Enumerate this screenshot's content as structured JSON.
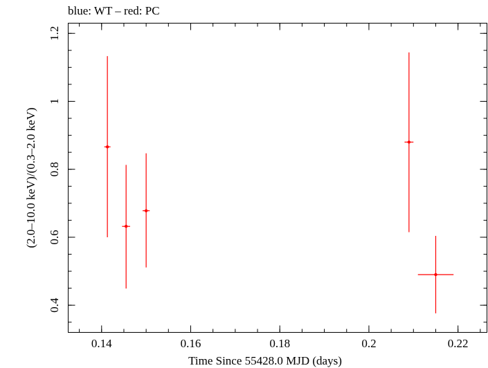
{
  "chart_data": {
    "type": "scatter",
    "title": "blue: WT – red: PC",
    "xlabel": "Time Since 55428.0 MJD (days)",
    "ylabel": "(2.0–10.0 keV)/(0.3–2.0 keV)",
    "xlim": [
      0.1325,
      0.2265
    ],
    "ylim": [
      0.32,
      1.23
    ],
    "x_ticks": [
      0.14,
      0.16,
      0.18,
      0.2,
      0.22
    ],
    "x_tick_labels": [
      "0.14",
      "0.16",
      "0.18",
      "0.2",
      "0.22"
    ],
    "y_ticks": [
      0.4,
      0.6,
      0.8,
      1.0,
      1.2
    ],
    "y_tick_labels": [
      "0.4",
      "0.6",
      "0.8",
      "1",
      "1.2"
    ],
    "grid": false,
    "series": [
      {
        "color": "#ff0000",
        "points": [
          {
            "x": 0.1413,
            "y": 0.866,
            "xerr": 0.0007,
            "ylo": 0.6,
            "yhi": 1.133
          },
          {
            "x": 0.1455,
            "y": 0.632,
            "xerr": 0.0009,
            "ylo": 0.449,
            "yhi": 0.813
          },
          {
            "x": 0.15,
            "y": 0.678,
            "xerr": 0.0008,
            "ylo": 0.511,
            "yhi": 0.847
          },
          {
            "x": 0.209,
            "y": 0.88,
            "xerr": 0.001,
            "ylo": 0.615,
            "yhi": 1.144
          },
          {
            "x": 0.215,
            "y": 0.49,
            "xerr": 0.004,
            "ylo": 0.376,
            "yhi": 0.604
          }
        ]
      }
    ]
  }
}
